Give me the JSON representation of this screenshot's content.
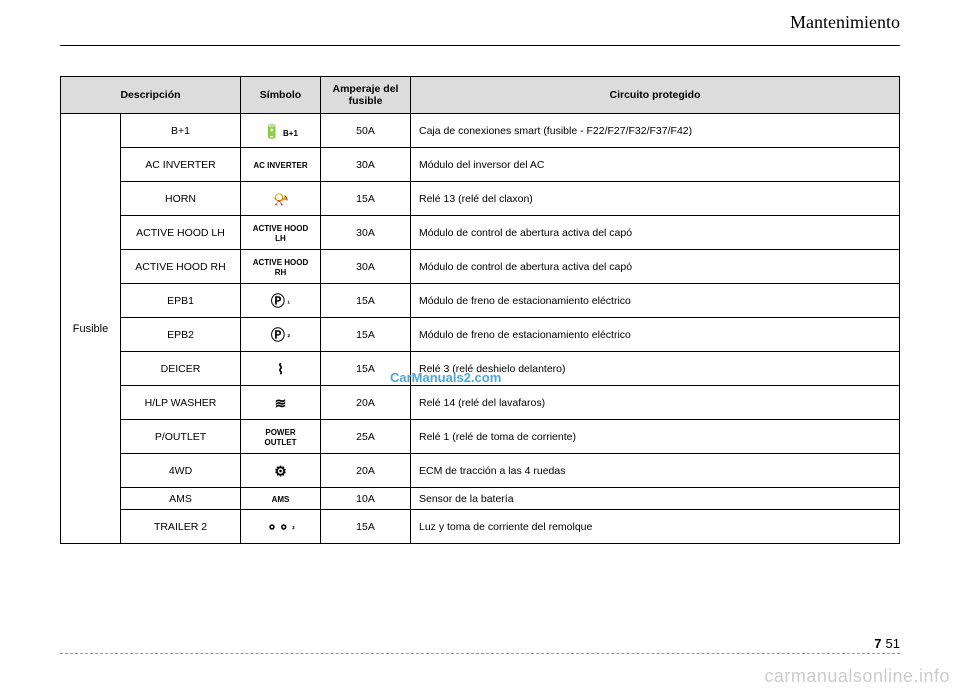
{
  "header": {
    "title": "Mantenimiento"
  },
  "table": {
    "columns": {
      "group": "",
      "desc": "Descripción",
      "sym": "Símbolo",
      "amp": "Amperaje del fusible",
      "circ": "Circuito protegido"
    },
    "group_label": "Fusible",
    "rows": [
      {
        "desc": "B+1",
        "sym_text": "B+1",
        "sym_glyph": "🔋",
        "amp": "50A",
        "circ": "Caja de conexiones smart (fusible - F22/F27/F32/F37/F42)",
        "tight": false
      },
      {
        "desc": "AC INVERTER",
        "sym_text": "AC INVERTER",
        "sym_glyph": "",
        "amp": "30A",
        "circ": "Módulo del inversor del AC",
        "tight": false
      },
      {
        "desc": "HORN",
        "sym_text": "",
        "sym_glyph": "📯",
        "amp": "15A",
        "circ": "Relé 13 (relé del claxon)",
        "tight": false
      },
      {
        "desc": "ACTIVE HOOD LH",
        "sym_text": "ACTIVE HOOD LH",
        "sym_glyph": "",
        "amp": "30A",
        "circ": "Módulo de control de abertura activa del capó",
        "tight": false
      },
      {
        "desc": "ACTIVE HOOD RH",
        "sym_text": "ACTIVE HOOD RH",
        "sym_glyph": "",
        "amp": "30A",
        "circ": "Módulo de control de abertura activa del capó",
        "tight": false
      },
      {
        "desc": "EPB1",
        "sym_text": "¹",
        "sym_glyph": "Ⓟ",
        "amp": "15A",
        "circ": "Módulo de freno de estacionamiento eléctrico",
        "tight": false
      },
      {
        "desc": "EPB2",
        "sym_text": "²",
        "sym_glyph": "Ⓟ",
        "amp": "15A",
        "circ": "Módulo de freno de estacionamiento eléctrico",
        "tight": false
      },
      {
        "desc": "DEICER",
        "sym_text": "",
        "sym_glyph": "⌇",
        "amp": "15A",
        "circ": "Relé 3 (relé deshielo delantero)",
        "tight": false
      },
      {
        "desc": "H/LP WASHER",
        "sym_text": "",
        "sym_glyph": "≋",
        "amp": "20A",
        "circ": "Relé 14 (relé del lavafaros)",
        "tight": false
      },
      {
        "desc": "P/OUTLET",
        "sym_text": "POWER OUTLET",
        "sym_glyph": "",
        "amp": "25A",
        "circ": "Relé 1 (relé de toma de corriente)",
        "tight": false
      },
      {
        "desc": "4WD",
        "sym_text": "",
        "sym_glyph": "⚙",
        "amp": "20A",
        "circ": "ECM de tracción a las 4 ruedas",
        "tight": false
      },
      {
        "desc": "AMS",
        "sym_text": "AMS",
        "sym_glyph": "",
        "amp": "10A",
        "circ": "Sensor de la batería",
        "tight": true
      },
      {
        "desc": "TRAILER 2",
        "sym_text": "²",
        "sym_glyph": "⚬⚬",
        "amp": "15A",
        "circ": "Luz y toma de corriente del remolque",
        "tight": false
      }
    ]
  },
  "watermark": {
    "center": "CarManuals2.com",
    "bottom": "carmanualsonline.info"
  },
  "page_number": {
    "chapter": "7",
    "page": "51"
  }
}
